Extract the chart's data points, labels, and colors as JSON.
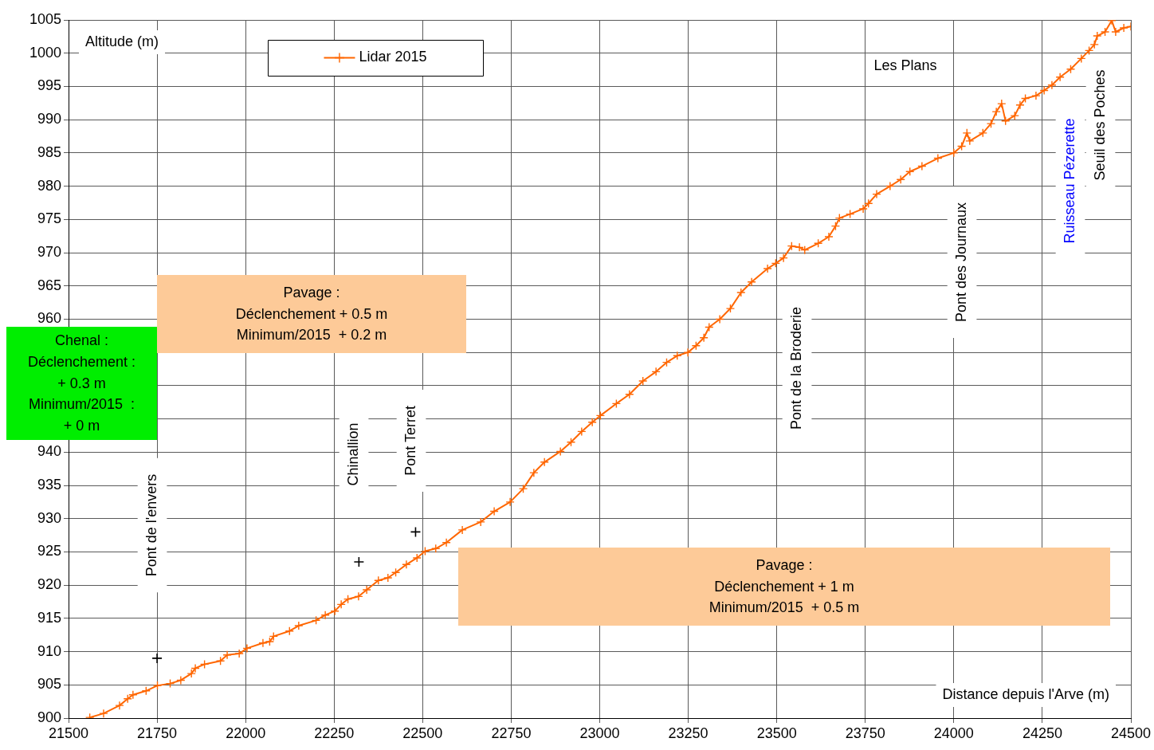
{
  "chart_data": {
    "type": "line",
    "xlabel": "Distance depuis l'Arve (m)",
    "ylabel": "Altitude (m)",
    "xlim": [
      21500,
      24500
    ],
    "xticks": [
      21500,
      21750,
      22000,
      22250,
      22500,
      22750,
      23000,
      23250,
      23500,
      23750,
      24000,
      24250,
      24500
    ],
    "ylim": [
      900,
      1005
    ],
    "yticks": [
      900,
      905,
      910,
      915,
      920,
      925,
      930,
      935,
      940,
      {
        "value": 945,
        "label": null
      },
      {
        "value": 950,
        "label": null
      },
      {
        "value": 955,
        "label": null
      },
      960,
      965,
      970,
      975,
      980,
      985,
      990,
      995,
      1000,
      1005
    ],
    "grid": true,
    "legend": "top left",
    "marker": "cross",
    "series": [
      {
        "name": "Lidar 2015",
        "color": "#ff6600",
        "x": [
          21560,
          21599,
          21644,
          21667,
          21682,
          21719,
          21751,
          21787,
          21817,
          21847,
          21858,
          21884,
          21929,
          21948,
          21982,
          22004,
          22049,
          22068,
          22079,
          22124,
          22150,
          22199,
          22225,
          22252,
          22270,
          22289,
          22319,
          22342,
          22375,
          22402,
          22424,
          22454,
          22484,
          22507,
          22537,
          22567,
          22612,
          22664,
          22702,
          22747,
          22784,
          22814,
          22844,
          22889,
          22919,
          22949,
          22979,
          23002,
          23047,
          23084,
          23122,
          23159,
          23189,
          23219,
          23249,
          23272,
          23294,
          23309,
          23339,
          23369,
          23399,
          23429,
          23474,
          23497,
          23519,
          23542,
          23564,
          23579,
          23617,
          23647,
          23666,
          23677,
          23707,
          23744,
          23759,
          23782,
          23820,
          23850,
          23876,
          23910,
          23955,
          24000,
          24022,
          24037,
          24045,
          24082,
          24105,
          24120,
          24135,
          24146,
          24172,
          24187,
          24202,
          24232,
          24255,
          24277,
          24300,
          24330,
          24360,
          24382,
          24397,
          24405,
          24427,
          24446,
          24457,
          24480,
          24500
        ],
        "values": [
          900.1,
          900.7,
          901.9,
          902.9,
          903.5,
          904.1,
          904.9,
          905.2,
          905.7,
          906.7,
          907.5,
          908.1,
          908.6,
          909.5,
          909.7,
          910.5,
          911.3,
          911.5,
          912.3,
          913.1,
          913.9,
          914.7,
          915.5,
          916.1,
          917.1,
          917.9,
          918.3,
          919.3,
          920.7,
          921.1,
          921.9,
          923.1,
          924.1,
          925.1,
          925.5,
          926.4,
          928.3,
          929.5,
          931.1,
          932.5,
          934.5,
          936.9,
          938.5,
          940.1,
          941.5,
          943.1,
          944.5,
          945.5,
          947.3,
          948.7,
          950.7,
          952.1,
          953.5,
          954.5,
          955.0,
          956.0,
          957.2,
          958.8,
          960.0,
          961.6,
          964.0,
          965.6,
          967.6,
          968.4,
          969.2,
          971.0,
          970.8,
          970.4,
          971.4,
          972.4,
          974.0,
          975.2,
          975.8,
          976.6,
          977.4,
          978.8,
          980.0,
          981.0,
          982.2,
          983.0,
          984.2,
          985.0,
          986.0,
          988.0,
          986.8,
          988.0,
          989.4,
          991.2,
          992.4,
          989.8,
          990.6,
          992.2,
          993.2,
          993.6,
          994.4,
          995.2,
          996.4,
          997.6,
          999.2,
          1000.4,
          1001.3,
          1002.6,
          1003.2,
          1004.9,
          1003.2,
          1003.8,
          1004.0
        ]
      },
      {
        "type": "scatter",
        "color": "#000000",
        "x": [
          21750,
          22320,
          22480
        ],
        "values": [
          909,
          923.5,
          928
        ]
      }
    ],
    "annotations": [
      "Pont de l'envers",
      "Chinallion",
      "Pont Terret",
      "Pont de la Broderie",
      "Pont des Journaux",
      "Ruisseau Pézerette",
      "Seuil des Poches",
      "Les Plans",
      "Pavage :\nDéclenchement + 0.5 m\nMinimum/2015  + 0.2 m",
      "Chenal :\nDéclenchement :\n+ 0.3 m\nMinimum/2015  :\n+ 0 m",
      "Pavage :\nDéclenchement + 1 m\nMinimum/2015  + 0.5 m"
    ]
  }
}
